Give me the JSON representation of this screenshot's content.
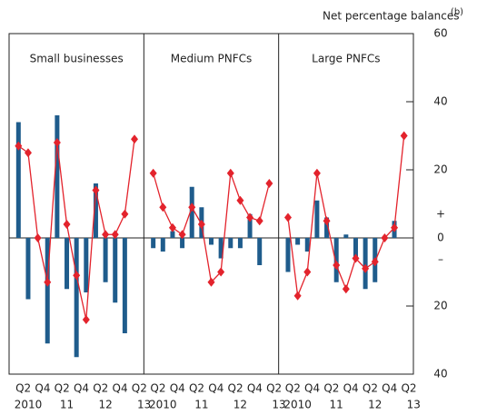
{
  "chart_data": {
    "type": "bar",
    "title": "Net percentage balances",
    "title_note": "(b)",
    "ylim": [
      -40,
      60
    ],
    "yticks": [
      {
        "value": -40,
        "label": "40"
      },
      {
        "value": -20,
        "label": "20"
      },
      0,
      20,
      40,
      60
    ],
    "sign_labels": [
      "+",
      "–"
    ],
    "categories": [
      "Q2",
      null,
      "Q4",
      null,
      "Q2",
      null,
      "Q4",
      null,
      "Q2",
      null,
      "Q4",
      null,
      "Q2"
    ],
    "years": [
      "2010",
      null,
      null,
      null,
      "11",
      null,
      null,
      null,
      "12",
      null,
      null,
      null,
      "13"
    ],
    "panels": [
      {
        "title": "Small businesses",
        "series": [
          {
            "type": "bar",
            "color": "#1f5c8c",
            "values": [
              34,
              -18,
              0,
              -31,
              36,
              -15,
              -35,
              -16,
              16,
              -13,
              -19,
              -28,
              null
            ]
          },
          {
            "type": "line",
            "color": "#e3232c",
            "values": [
              27,
              25,
              0,
              -13,
              28,
              4,
              -11,
              -24,
              14,
              1,
              1,
              7,
              29
            ]
          }
        ]
      },
      {
        "title": "Medium PNFCs",
        "series": [
          {
            "type": "bar",
            "color": "#1f5c8c",
            "values": [
              -3,
              -4,
              2,
              -3,
              15,
              9,
              -2,
              -6,
              -3,
              -3,
              7,
              -8,
              null
            ]
          },
          {
            "type": "line",
            "color": "#e3232c",
            "values": [
              19,
              9,
              3,
              1,
              9,
              4,
              -13,
              -10,
              19,
              11,
              6,
              5,
              16
            ]
          }
        ]
      },
      {
        "title": "Large PNFCs",
        "series": [
          {
            "type": "bar",
            "color": "#1f5c8c",
            "values": [
              -10,
              -2,
              -4,
              11,
              6,
              -13,
              1,
              -6,
              -15,
              -13,
              0,
              5,
              null
            ]
          },
          {
            "type": "line",
            "color": "#e3232c",
            "values": [
              6,
              -17,
              -10,
              19,
              5,
              -8,
              -15,
              -6,
              -9,
              -7,
              0,
              3,
              30
            ]
          }
        ]
      }
    ]
  }
}
